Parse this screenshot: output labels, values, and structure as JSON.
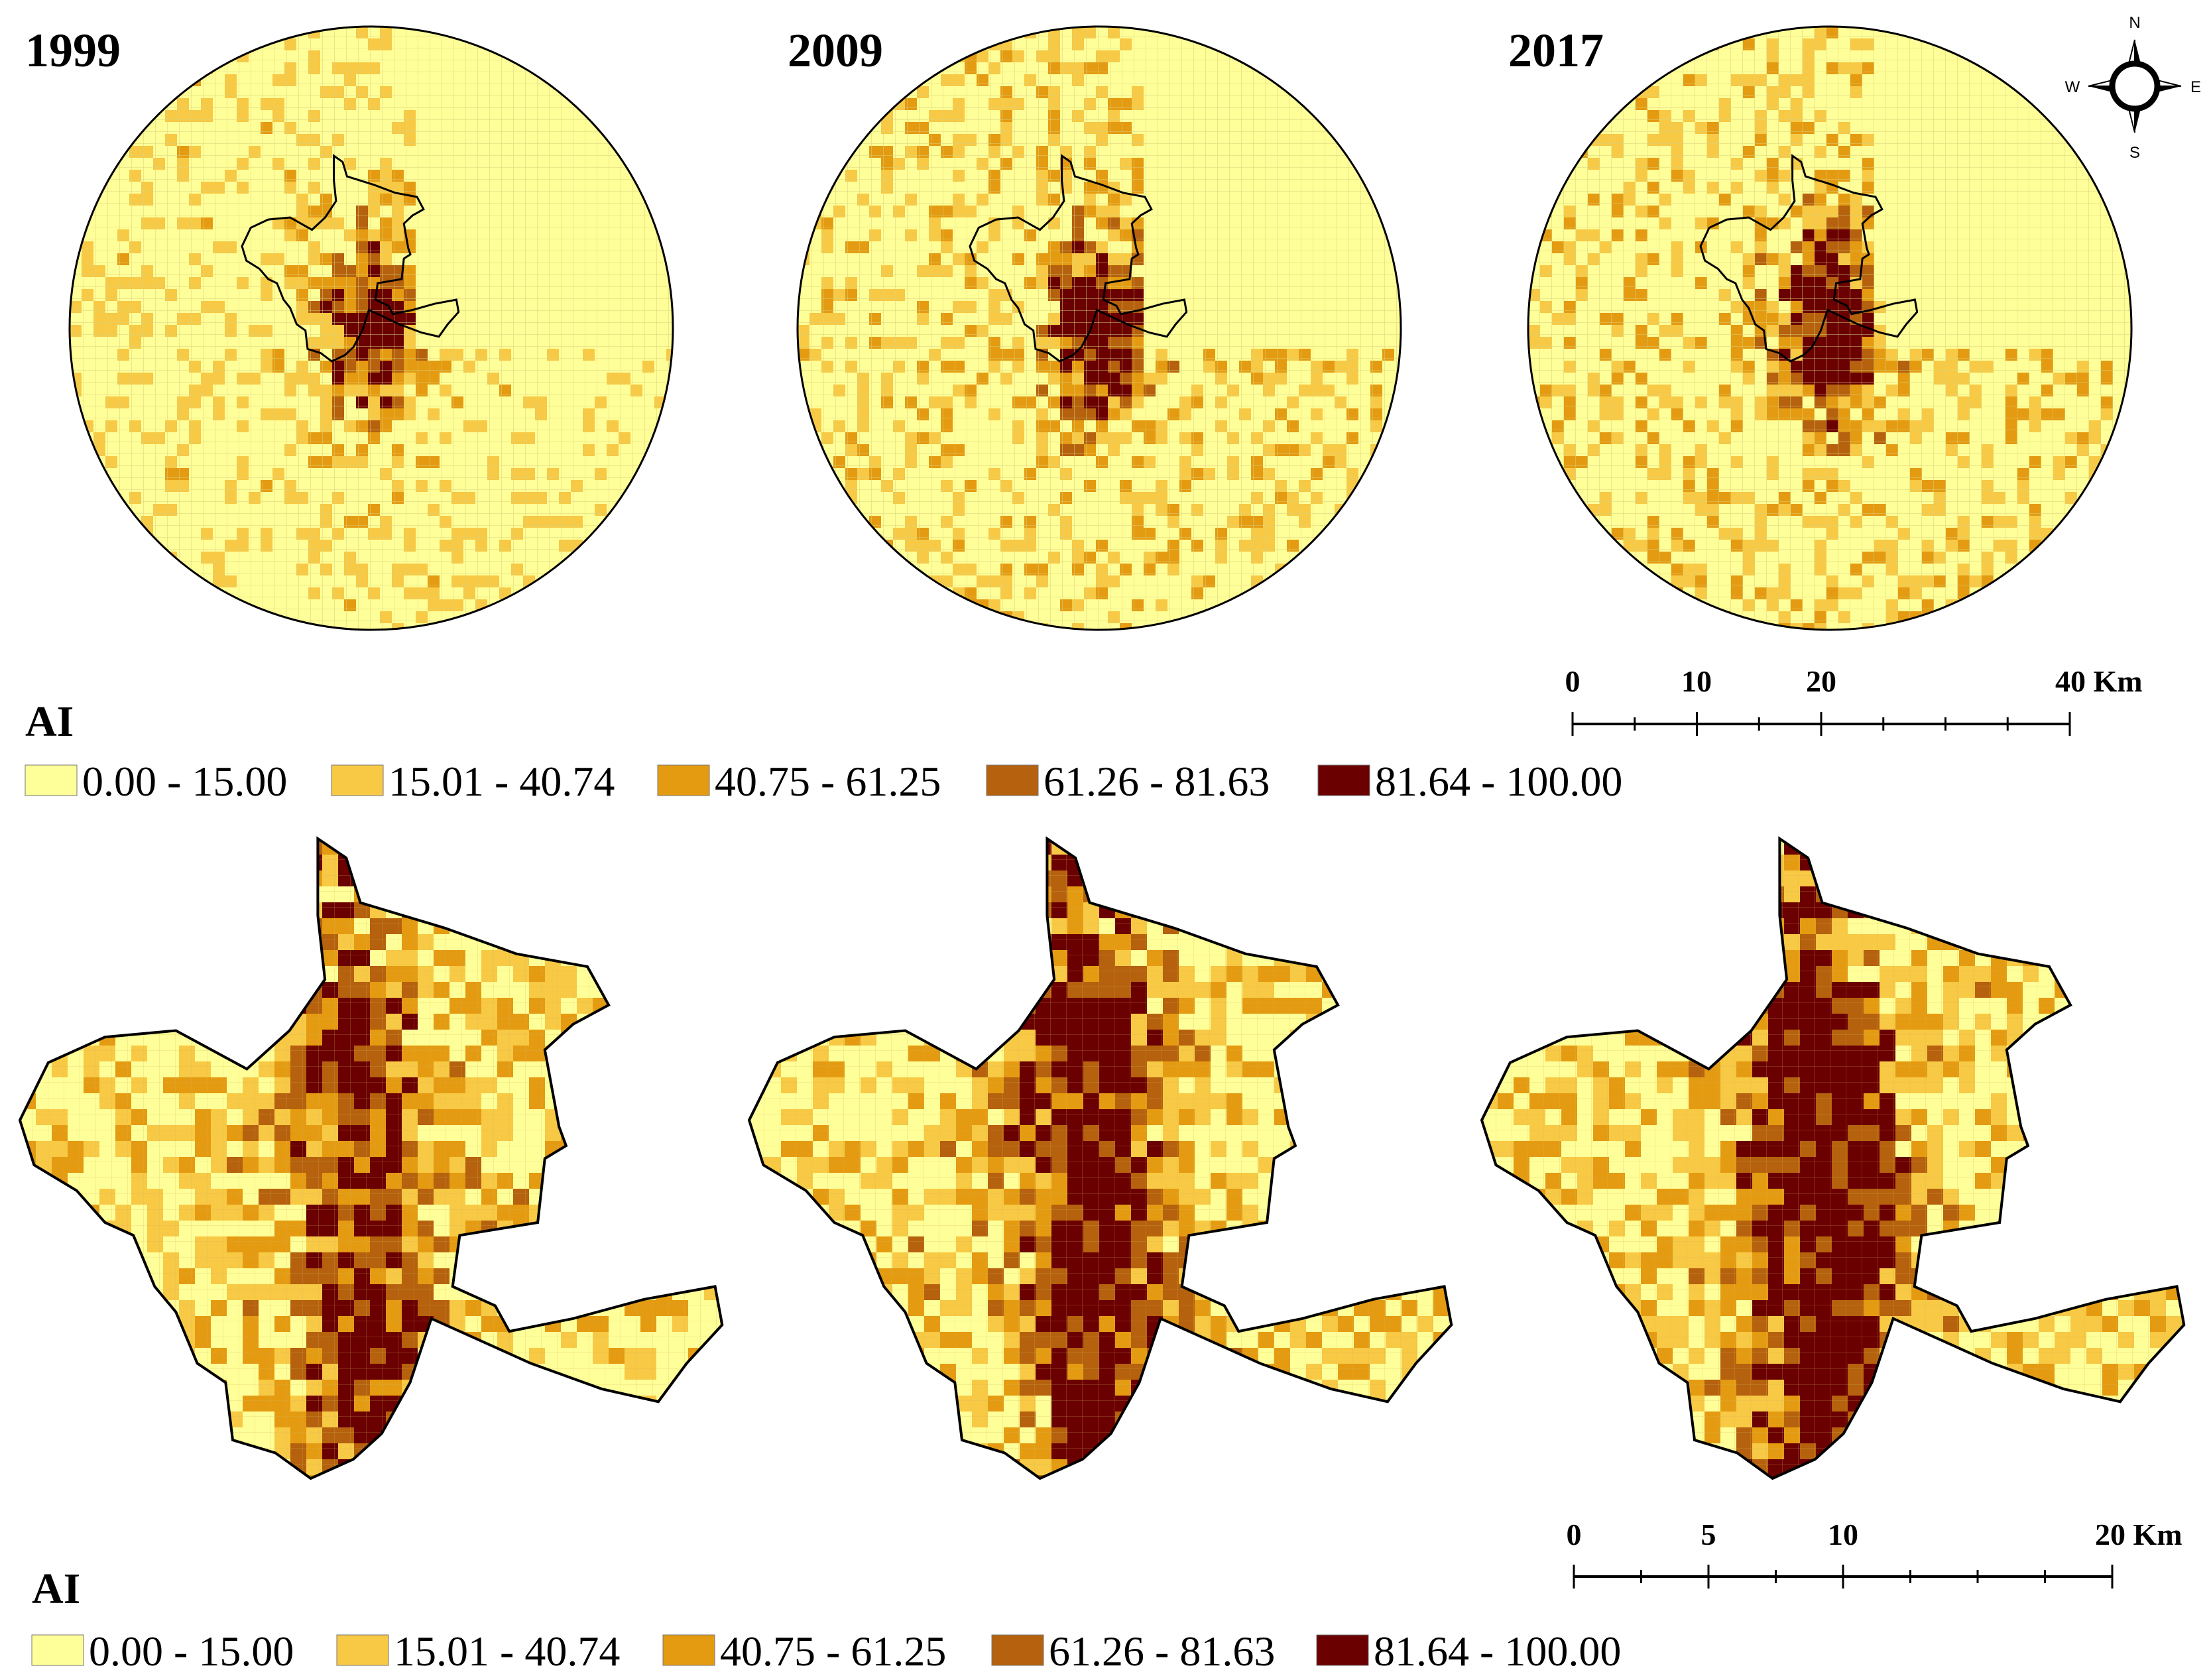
{
  "maps": {
    "regional": [
      {
        "year": "1999",
        "intensity": 0.3
      },
      {
        "year": "2009",
        "intensity": 0.45
      },
      {
        "year": "2017",
        "intensity": 0.5
      }
    ],
    "city": [
      {
        "year": "1999",
        "intensity": 0.25
      },
      {
        "year": "2009",
        "intensity": 0.4
      },
      {
        "year": "2017",
        "intensity": 0.55
      }
    ]
  },
  "compass": {
    "n": "N",
    "s": "S",
    "e": "E",
    "w": "W"
  },
  "scalebars": {
    "regional": {
      "labels": [
        "0",
        "10",
        "20",
        "40 Km"
      ],
      "max_km": 40,
      "ticks": 8
    },
    "city": {
      "labels": [
        "0",
        "5",
        "10",
        "20 Km"
      ],
      "max_km": 20,
      "ticks": 8
    }
  },
  "legend": {
    "title": "AI",
    "classes": [
      {
        "label": "0.00 - 15.00",
        "color": "#ffff99"
      },
      {
        "label": "15.01 - 40.74",
        "color": "#f7c945"
      },
      {
        "label": "40.75 - 61.25",
        "color": "#e49b12"
      },
      {
        "label": "61.26 - 81.63",
        "color": "#b5610d"
      },
      {
        "label": "81.64 - 100.00",
        "color": "#6a0000"
      }
    ]
  },
  "colors": {
    "background_cell": "#ffff99",
    "outline": "#000000"
  }
}
